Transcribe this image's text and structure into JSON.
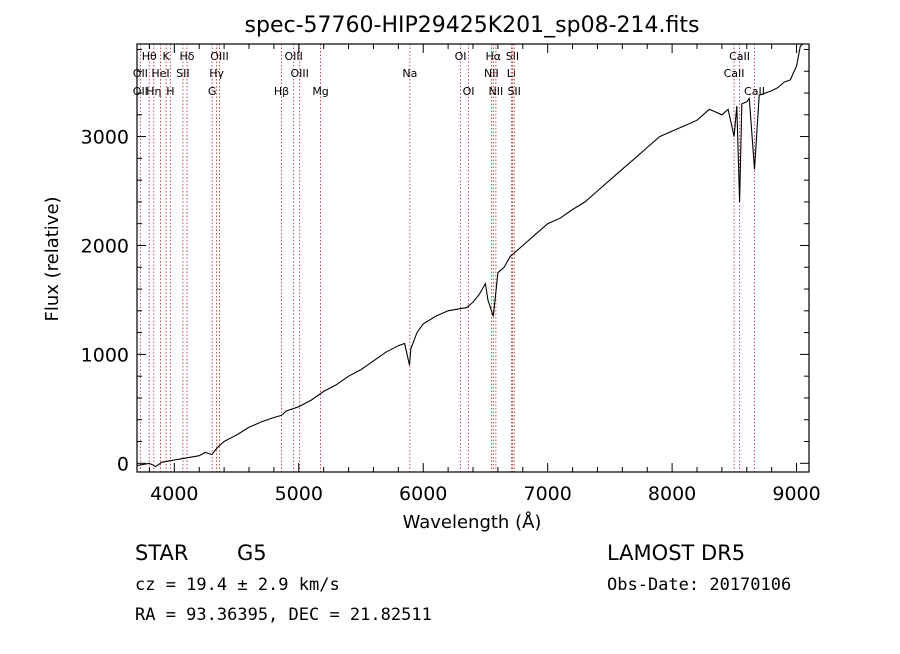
{
  "chart_data": {
    "type": "line",
    "title": "spec-57760-HIP29425K201_sp08-214.fits",
    "xlabel": "Wavelength (Å)",
    "ylabel": "Flux (relative)",
    "xlim": [
      3700,
      9100
    ],
    "ylim": [
      -80,
      3850
    ],
    "xticks": [
      4000,
      5000,
      6000,
      7000,
      8000,
      9000
    ],
    "yticks": [
      0,
      1000,
      2000,
      3000
    ],
    "grid": false,
    "series": [
      {
        "x": [
          3700,
          3750,
          3800,
          3850,
          3900,
          3950,
          4000,
          4050,
          4100,
          4150,
          4200,
          4250,
          4300,
          4350,
          4400,
          4450,
          4500,
          4600,
          4700,
          4800,
          4860,
          4900,
          5000,
          5100,
          5200,
          5300,
          5400,
          5500,
          5600,
          5700,
          5800,
          5850,
          5890,
          5900,
          5950,
          6000,
          6100,
          6200,
          6300,
          6350,
          6400,
          6450,
          6500,
          6520,
          6563,
          6600,
          6650,
          6700,
          6800,
          6900,
          7000,
          7100,
          7200,
          7300,
          7400,
          7500,
          7600,
          7700,
          7800,
          7900,
          8000,
          8100,
          8200,
          8300,
          8400,
          8450,
          8498,
          8520,
          8542,
          8560,
          8600,
          8620,
          8662,
          8700,
          8800,
          8850,
          8900,
          8950,
          9000,
          9030,
          9050
        ],
        "values": [
          -20,
          -10,
          0,
          -30,
          10,
          20,
          30,
          40,
          50,
          60,
          70,
          100,
          80,
          150,
          200,
          230,
          260,
          330,
          380,
          420,
          440,
          480,
          520,
          580,
          660,
          720,
          800,
          860,
          940,
          1020,
          1080,
          1100,
          900,
          1050,
          1200,
          1280,
          1350,
          1400,
          1420,
          1430,
          1480,
          1550,
          1650,
          1500,
          1350,
          1750,
          1800,
          1900,
          2000,
          2100,
          2200,
          2250,
          2330,
          2400,
          2500,
          2600,
          2700,
          2800,
          2900,
          3000,
          3050,
          3100,
          3150,
          3250,
          3200,
          3250,
          3000,
          3280,
          2400,
          3300,
          3320,
          3350,
          2700,
          3380,
          3420,
          3450,
          3500,
          3520,
          3650,
          3830,
          3850
        ]
      }
    ],
    "line_markers": [
      {
        "name": "Hθ",
        "wave": 3798,
        "row": 1
      },
      {
        "name": "OII",
        "wave": 3727,
        "row": 2
      },
      {
        "name": "OII",
        "wave": 3727,
        "row": 3
      },
      {
        "name": "Hη",
        "wave": 3835,
        "row": 3
      },
      {
        "name": "HeI",
        "wave": 3889,
        "row": 2
      },
      {
        "name": "K",
        "wave": 3934,
        "row": 1
      },
      {
        "name": "H",
        "wave": 3968,
        "row": 3
      },
      {
        "name": "SII",
        "wave": 4069,
        "row": 2
      },
      {
        "name": "Hδ",
        "wave": 4102,
        "row": 1
      },
      {
        "name": "OIII",
        "wave": 4363,
        "row": 1
      },
      {
        "name": "Hγ",
        "wave": 4340,
        "row": 2
      },
      {
        "name": "G",
        "wave": 4304,
        "row": 3
      },
      {
        "name": "Hβ",
        "wave": 4861,
        "row": 3
      },
      {
        "name": "OIII",
        "wave": 4959,
        "row": 1
      },
      {
        "name": "OIII",
        "wave": 5007,
        "row": 2
      },
      {
        "name": "Mg",
        "wave": 5175,
        "row": 3
      },
      {
        "name": "Na",
        "wave": 5893,
        "row": 2
      },
      {
        "name": "OI",
        "wave": 6300,
        "row": 1
      },
      {
        "name": "OI",
        "wave": 6364,
        "row": 3
      },
      {
        "name": "Hα",
        "wave": 6563,
        "row": 1
      },
      {
        "name": "NII",
        "wave": 6548,
        "row": 2
      },
      {
        "name": "NII",
        "wave": 6584,
        "row": 3
      },
      {
        "name": "SII",
        "wave": 6717,
        "row": 1
      },
      {
        "name": "Li",
        "wave": 6708,
        "row": 2
      },
      {
        "name": "SII",
        "wave": 6731,
        "row": 3
      },
      {
        "name": "CaII",
        "wave": 8542,
        "row": 1
      },
      {
        "name": "CaII",
        "wave": 8498,
        "row": 2
      },
      {
        "name": "CaII",
        "wave": 8662,
        "row": 3
      }
    ]
  },
  "info": {
    "class_label": "STAR",
    "subclass": "G5",
    "survey": "LAMOST DR5",
    "cz": "cz = 19.4 ± 2.9 km/s",
    "obs_date": "Obs-Date: 20170106",
    "radec": "RA =  93.36395, DEC =  21.82511"
  },
  "colors": {
    "spectrum": "#000000",
    "marker_line": "#b22222",
    "axis": "#000000"
  }
}
